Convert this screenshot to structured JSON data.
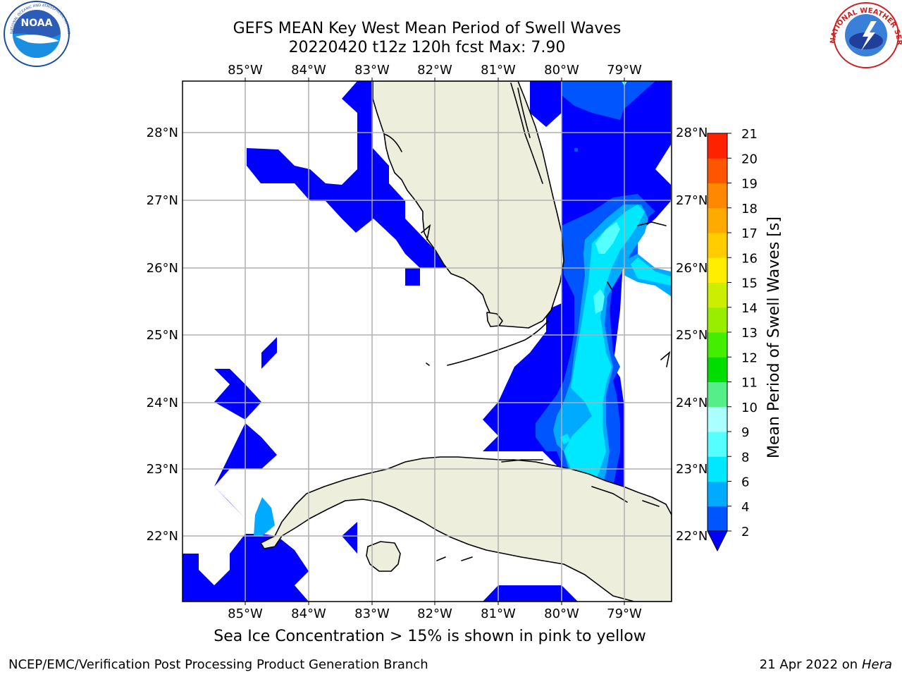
{
  "title": {
    "line1": "GEFS MEAN Key West Mean Period of Swell Waves",
    "line2": "20220420 t12z 120h fcst   Max: 7.90"
  },
  "map": {
    "lon_labels": [
      "85°W",
      "84°W",
      "83°W",
      "82°W",
      "81°W",
      "80°W",
      "79°W"
    ],
    "lat_labels": [
      "28°N",
      "27°N",
      "26°N",
      "25°N",
      "24°N",
      "23°N",
      "22°N"
    ],
    "land_color": "#eeeedd",
    "ocean_color": "#ffffff"
  },
  "colorbar": {
    "label": "Mean Period of Swell Waves [s]",
    "ticks": [
      "2",
      "4",
      "6",
      "8",
      "9",
      "10",
      "11",
      "12",
      "13",
      "14",
      "15",
      "16",
      "17",
      "18",
      "19",
      "20",
      "21"
    ],
    "colors": [
      "#0055ff",
      "#00aaff",
      "#00e8ff",
      "#55ffff",
      "#aaffff",
      "#55ee88",
      "#00dd00",
      "#44ee00",
      "#99ee00",
      "#ccee00",
      "#ffee00",
      "#ffcc00",
      "#ffaa00",
      "#ff8800",
      "#ff5500",
      "#ff2200"
    ],
    "under_color": "#0000ff"
  },
  "caption": "Sea Ice Concentration > 15% is shown in pink to yellow",
  "footer": {
    "left": "NCEP/EMC/Verification Post Processing Product Generation Branch",
    "right_date": "21 Apr 2022 on ",
    "right_host": "Hera"
  },
  "logos": {
    "noaa_text": "NOAA",
    "noaa_ring": "NATIONAL OCEANIC AND ATMOSPHERIC ADMINISTRATION · U.S. DEPARTMENT OF COMMERCE",
    "nws_ring": "NATIONAL WEATHER SERVICE"
  }
}
